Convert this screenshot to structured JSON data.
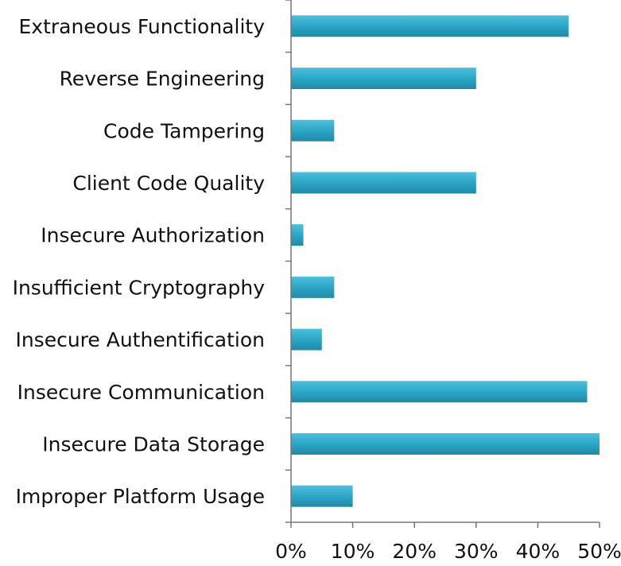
{
  "chart_data": {
    "type": "bar",
    "orientation": "horizontal",
    "title": "",
    "xlabel": "",
    "ylabel": "",
    "categories": [
      "Extraneous Functionality",
      "Reverse Engineering",
      "Code Tampering",
      "Client Code Quality",
      "Insecure Authorization",
      "Insufficient Cryptography",
      "Insecure Authentification",
      "Insecure Communication",
      "Insecure Data Storage",
      "Improper Platform Usage"
    ],
    "values": [
      45,
      30,
      7,
      30,
      2,
      7,
      5,
      48,
      50,
      10
    ],
    "xlim": [
      0,
      50
    ],
    "x_ticks": [
      0,
      10,
      20,
      30,
      40,
      50
    ],
    "x_tick_labels": [
      "0%",
      "10%",
      "20%",
      "30%",
      "40%",
      "50%"
    ],
    "grid": false,
    "legend": "none",
    "bar_color": "#2aa3c4"
  }
}
